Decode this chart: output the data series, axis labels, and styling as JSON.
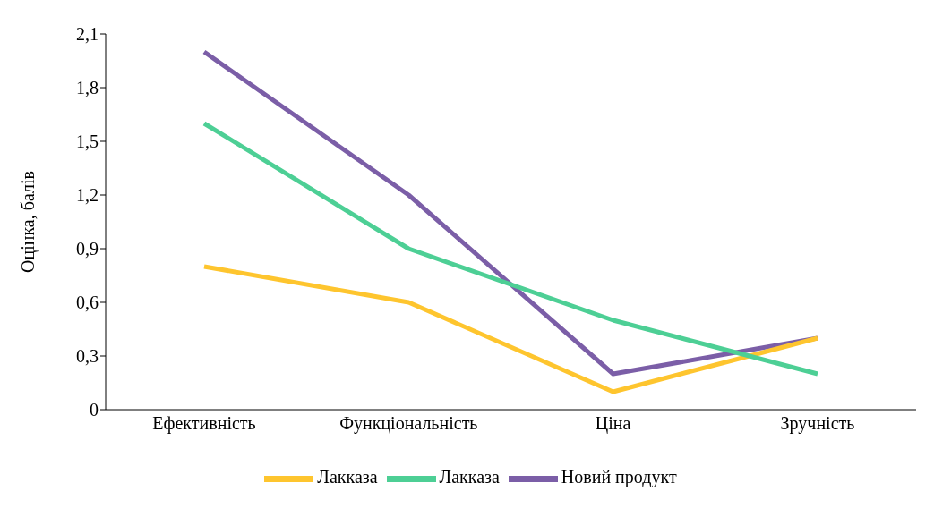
{
  "chart_data": {
    "type": "line",
    "ylabel": "Оцінка, балів",
    "categories": [
      "Ефективність",
      "Функціональність",
      "Ціна",
      "Зручність"
    ],
    "series": [
      {
        "name": "Новий продукт",
        "color": "#7b5ea7",
        "values": [
          2.0,
          1.2,
          0.2,
          0.4
        ]
      },
      {
        "name": "Лакказа",
        "color": "#fec52e",
        "values": [
          0.8,
          0.6,
          0.1,
          0.4
        ]
      },
      {
        "name": "Лакказа",
        "color": "#4dcf95",
        "values": [
          1.6,
          0.9,
          0.5,
          0.2
        ]
      }
    ],
    "ylim": [
      0,
      2.1
    ],
    "yticks": [
      0,
      {
        "value": 0.3,
        "label": "0,3"
      },
      {
        "value": 0.6,
        "label": "0,6"
      },
      {
        "value": 0.9,
        "label": "0,9"
      },
      {
        "value": 1.2,
        "label": "1,2"
      },
      {
        "value": 1.5,
        "label": "1,5"
      },
      {
        "value": 1.8,
        "label": "1,8"
      },
      {
        "value": 2.1,
        "label": "2,1"
      }
    ],
    "grid": false,
    "legend": "bottom",
    "marker": "none",
    "line_style": "solid"
  }
}
